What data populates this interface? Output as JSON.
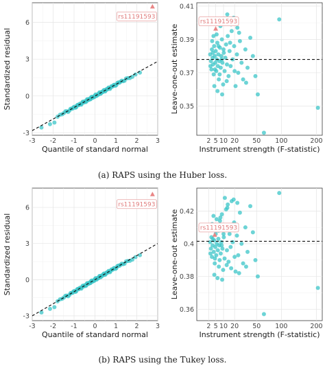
{
  "captions": {
    "a": "(a) RAPS using the Huber loss.",
    "b": "(b) RAPS using the Tukey loss."
  },
  "colors": {
    "points": "#3cc6c8",
    "highlight": "#e98686",
    "refline": "#111111"
  },
  "chart_data": [
    {
      "type": "scatter",
      "panel": "qq-huber",
      "xlabel": "Quantile of standard normal",
      "ylabel": "Standardized residual",
      "xlim": [
        -3,
        3
      ],
      "ylim": [
        -3.2,
        7.6
      ],
      "xticks": [
        -3,
        -2,
        -1,
        0,
        1,
        2,
        3
      ],
      "yticks": [
        -3,
        0,
        3,
        6
      ],
      "refline": {
        "slope": 0.94,
        "intercept": 0.0
      },
      "highlight": {
        "label": "rs11191593",
        "x": 2.75,
        "y": 7.3
      },
      "grid": true
    },
    {
      "type": "scatter",
      "panel": "loo-huber",
      "xlabel": "Instrument strength (F-statistic)",
      "ylabel": "Leave-one-out estimate",
      "xscale": "sqrt",
      "xlim": [
        0,
        220
      ],
      "ylim": [
        0.3325,
        0.412
      ],
      "xticks": [
        2,
        5,
        10,
        20,
        50,
        100,
        200
      ],
      "yticks": [
        0.35,
        0.37,
        0.39,
        0.41
      ],
      "hline": 0.378,
      "highlight": {
        "label": "rs11191593",
        "x": 5,
        "y": 0.3965
      },
      "grid": true,
      "points": [
        [
          2.5,
          0.381
        ],
        [
          2.8,
          0.377
        ],
        [
          3.0,
          0.372
        ],
        [
          3.2,
          0.384
        ],
        [
          3.5,
          0.379
        ],
        [
          3.7,
          0.375
        ],
        [
          4.0,
          0.369
        ],
        [
          4.2,
          0.386
        ],
        [
          4.5,
          0.38
        ],
        [
          4.8,
          0.376
        ],
        [
          5.0,
          0.383
        ],
        [
          5.3,
          0.371
        ],
        [
          5.6,
          0.378
        ],
        [
          5.9,
          0.388
        ],
        [
          6.2,
          0.374
        ],
        [
          6.5,
          0.381
        ],
        [
          6.8,
          0.366
        ],
        [
          7.1,
          0.377
        ],
        [
          7.5,
          0.385
        ],
        [
          8.0,
          0.373
        ],
        [
          8.4,
          0.38
        ],
        [
          8.8,
          0.39
        ],
        [
          9.2,
          0.376
        ],
        [
          9.7,
          0.363
        ],
        [
          10.2,
          0.382
        ],
        [
          10.8,
          0.371
        ],
        [
          11.4,
          0.379
        ],
        [
          12.0,
          0.387
        ],
        [
          12.7,
          0.375
        ],
        [
          13.4,
          0.392
        ],
        [
          14.1,
          0.368
        ],
        [
          15.0,
          0.383
        ],
        [
          16.0,
          0.374
        ],
        [
          17.0,
          0.395
        ],
        [
          18.0,
          0.378
        ],
        [
          19.5,
          0.386
        ],
        [
          21.0,
          0.362
        ],
        [
          22.5,
          0.381
        ],
        [
          24.0,
          0.37
        ],
        [
          26.0,
          0.389
        ],
        [
          28.0,
          0.376
        ],
        [
          30.0,
          0.366
        ],
        [
          33.0,
          0.384
        ],
        [
          36.0,
          0.373
        ],
        [
          40.0,
          0.391
        ],
        [
          44.0,
          0.38
        ],
        [
          48.0,
          0.368
        ],
        [
          4.3,
          0.362
        ],
        [
          6.0,
          0.359
        ],
        [
          7.8,
          0.398
        ],
        [
          11.0,
          0.401
        ],
        [
          13.0,
          0.405
        ],
        [
          16.5,
          0.399
        ],
        [
          19.0,
          0.403
        ],
        [
          25.0,
          0.394
        ],
        [
          9.0,
          0.357
        ],
        [
          12.5,
          0.365
        ],
        [
          20.0,
          0.371
        ],
        [
          3.3,
          0.389
        ],
        [
          3.9,
          0.392
        ],
        [
          5.5,
          0.393
        ],
        [
          7.3,
          0.369
        ],
        [
          10.0,
          0.384
        ],
        [
          15.5,
          0.388
        ],
        [
          23.0,
          0.397
        ],
        [
          34.0,
          0.364
        ],
        [
          52.0,
          0.357
        ],
        [
          63.0,
          0.334
        ],
        [
          95.0,
          0.402
        ],
        [
          205.0,
          0.349
        ],
        [
          2.6,
          0.374
        ],
        [
          3.6,
          0.382
        ],
        [
          4.6,
          0.372
        ],
        [
          6.6,
          0.386
        ],
        [
          8.6,
          0.378
        ]
      ]
    },
    {
      "type": "scatter",
      "panel": "qq-tukey",
      "xlabel": "Quantile of standard normal",
      "ylabel": "Standardized residual",
      "xlim": [
        -3,
        3
      ],
      "ylim": [
        -3.4,
        7.6
      ],
      "xticks": [
        -3,
        -2,
        -1,
        0,
        1,
        2,
        3
      ],
      "yticks": [
        -3,
        0,
        3,
        6
      ],
      "refline": {
        "slope": 1.0,
        "intercept": 0.0
      },
      "highlight": {
        "label": "rs11191593",
        "x": 2.75,
        "y": 7.1
      },
      "grid": true
    },
    {
      "type": "scatter",
      "panel": "loo-tukey",
      "xlabel": "Instrument strength (F-statistic)",
      "ylabel": "Leave-one-out estimate",
      "xscale": "sqrt",
      "xlim": [
        0,
        220
      ],
      "ylim": [
        0.353,
        0.434
      ],
      "xticks": [
        2,
        5,
        10,
        20,
        50,
        100,
        200
      ],
      "yticks": [
        0.36,
        0.38,
        0.4,
        0.42
      ],
      "hline": 0.4015,
      "highlight": {
        "label": "rs11191593",
        "x": 4.5,
        "y": 0.4055
      },
      "grid": true,
      "points": [
        [
          2.5,
          0.401
        ],
        [
          2.8,
          0.397
        ],
        [
          3.0,
          0.404
        ],
        [
          3.2,
          0.392
        ],
        [
          3.5,
          0.399
        ],
        [
          3.7,
          0.409
        ],
        [
          4.0,
          0.395
        ],
        [
          4.2,
          0.402
        ],
        [
          4.5,
          0.388
        ],
        [
          4.8,
          0.398
        ],
        [
          5.0,
          0.406
        ],
        [
          5.3,
          0.393
        ],
        [
          5.6,
          0.4
        ],
        [
          5.9,
          0.411
        ],
        [
          6.2,
          0.396
        ],
        [
          6.5,
          0.403
        ],
        [
          6.8,
          0.386
        ],
        [
          7.1,
          0.399
        ],
        [
          7.5,
          0.414
        ],
        [
          8.0,
          0.394
        ],
        [
          8.4,
          0.401
        ],
        [
          8.8,
          0.418
        ],
        [
          9.2,
          0.397
        ],
        [
          9.7,
          0.384
        ],
        [
          10.2,
          0.404
        ],
        [
          10.8,
          0.391
        ],
        [
          11.4,
          0.409
        ],
        [
          12.0,
          0.421
        ],
        [
          12.7,
          0.396
        ],
        [
          13.4,
          0.424
        ],
        [
          14.1,
          0.389
        ],
        [
          15.0,
          0.406
        ],
        [
          16.0,
          0.398
        ],
        [
          17.0,
          0.426
        ],
        [
          18.0,
          0.401
        ],
        [
          19.5,
          0.413
        ],
        [
          21.0,
          0.383
        ],
        [
          22.5,
          0.405
        ],
        [
          24.0,
          0.393
        ],
        [
          26.0,
          0.419
        ],
        [
          28.0,
          0.4
        ],
        [
          30.0,
          0.388
        ],
        [
          33.0,
          0.41
        ],
        [
          36.0,
          0.395
        ],
        [
          40.0,
          0.423
        ],
        [
          44.0,
          0.407
        ],
        [
          48.0,
          0.39
        ],
        [
          4.3,
          0.381
        ],
        [
          6.0,
          0.379
        ],
        [
          7.8,
          0.416
        ],
        [
          11.0,
          0.428
        ],
        [
          13.0,
          0.422
        ],
        [
          16.5,
          0.385
        ],
        [
          19.0,
          0.427
        ],
        [
          25.0,
          0.382
        ],
        [
          9.0,
          0.378
        ],
        [
          12.5,
          0.387
        ],
        [
          20.0,
          0.392
        ],
        [
          3.3,
          0.412
        ],
        [
          3.9,
          0.417
        ],
        [
          5.5,
          0.415
        ],
        [
          7.3,
          0.39
        ],
        [
          10.0,
          0.406
        ],
        [
          15.5,
          0.411
        ],
        [
          23.0,
          0.425
        ],
        [
          34.0,
          0.386
        ],
        [
          52.0,
          0.38
        ],
        [
          63.0,
          0.357
        ],
        [
          95.0,
          0.431
        ],
        [
          205.0,
          0.373
        ],
        [
          2.6,
          0.394
        ],
        [
          3.6,
          0.403
        ],
        [
          4.6,
          0.391
        ],
        [
          6.6,
          0.408
        ],
        [
          8.6,
          0.399
        ]
      ]
    }
  ]
}
